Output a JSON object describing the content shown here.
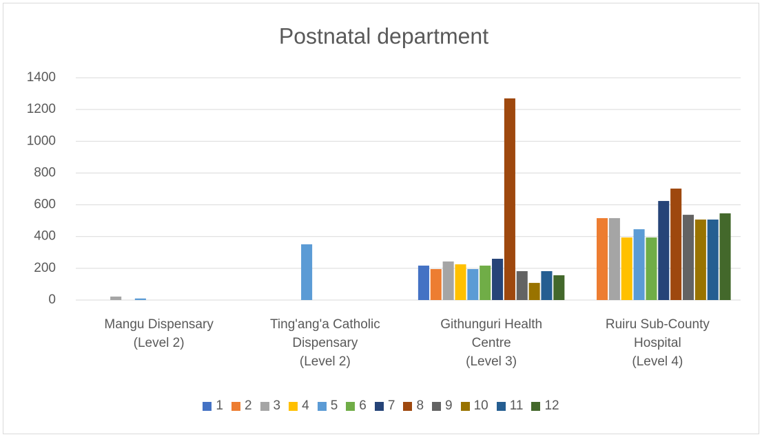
{
  "chart_data": {
    "type": "bar",
    "title": "Postnatal department",
    "categories": [
      "Mangu Dispensary\n(Level 2)",
      "Ting'ang'a Catholic\nDispensary\n(Level 2)",
      "Githunguri Health\nCentre\n(Level 3)",
      "Ruiru Sub-County\nHospital\n(Level 4)"
    ],
    "series": [
      {
        "name": "1",
        "color": "#4472c4",
        "values": [
          0,
          0,
          217,
          0
        ]
      },
      {
        "name": "2",
        "color": "#ed7d31",
        "values": [
          0,
          0,
          195,
          516
        ]
      },
      {
        "name": "3",
        "color": "#a5a5a5",
        "values": [
          22,
          0,
          243,
          516
        ]
      },
      {
        "name": "4",
        "color": "#ffc000",
        "values": [
          0,
          0,
          225,
          394
        ]
      },
      {
        "name": "5",
        "color": "#5b9bd5",
        "values": [
          10,
          351,
          195,
          446
        ]
      },
      {
        "name": "6",
        "color": "#70ad47",
        "values": [
          0,
          0,
          217,
          394
        ]
      },
      {
        "name": "7",
        "color": "#264478",
        "values": [
          0,
          0,
          260,
          624
        ]
      },
      {
        "name": "8",
        "color": "#9e480e",
        "values": [
          0,
          0,
          1270,
          702
        ]
      },
      {
        "name": "9",
        "color": "#636363",
        "values": [
          0,
          0,
          182,
          537
        ]
      },
      {
        "name": "10",
        "color": "#997300",
        "values": [
          0,
          0,
          108,
          507
        ]
      },
      {
        "name": "11",
        "color": "#255e91",
        "values": [
          0,
          0,
          182,
          507
        ]
      },
      {
        "name": "12",
        "color": "#43682b",
        "values": [
          0,
          0,
          156,
          546
        ]
      }
    ],
    "ylim": [
      0,
      1400
    ],
    "yticks": [
      0,
      200,
      400,
      600,
      800,
      1000,
      1200,
      1400
    ],
    "grid": true,
    "legend": "bottom"
  }
}
